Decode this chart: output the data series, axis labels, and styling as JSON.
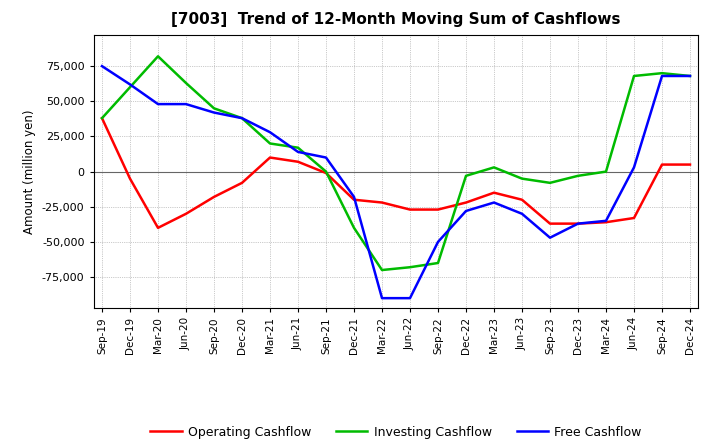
{
  "title": "[7003]  Trend of 12-Month Moving Sum of Cashflows",
  "ylabel": "Amount (million yen)",
  "ylim": [
    -97000,
    97000
  ],
  "yticks": [
    -75000,
    -50000,
    -25000,
    0,
    25000,
    50000,
    75000
  ],
  "background_color": "#ffffff",
  "plot_bg": "#ffffff",
  "grid_color": "#999999",
  "labels": [
    "Sep-19",
    "Dec-19",
    "Mar-20",
    "Jun-20",
    "Sep-20",
    "Dec-20",
    "Mar-21",
    "Jun-21",
    "Sep-21",
    "Dec-21",
    "Mar-22",
    "Jun-22",
    "Sep-22",
    "Dec-22",
    "Mar-23",
    "Jun-23",
    "Sep-23",
    "Dec-23",
    "Mar-24",
    "Jun-24",
    "Sep-24",
    "Dec-24"
  ],
  "operating": [
    38000,
    -5000,
    -40000,
    -30000,
    -18000,
    -8000,
    10000,
    7000,
    -1000,
    -20000,
    -22000,
    -27000,
    -27000,
    -22000,
    -15000,
    -20000,
    -37000,
    -37000,
    -36000,
    -33000,
    5000,
    5000
  ],
  "investing": [
    38000,
    60000,
    82000,
    63000,
    45000,
    38000,
    20000,
    17000,
    0,
    -40000,
    -70000,
    -68000,
    -65000,
    -3000,
    3000,
    -5000,
    -8000,
    -3000,
    0,
    68000,
    70000,
    68000
  ],
  "free": [
    75000,
    62000,
    48000,
    48000,
    42000,
    38000,
    28000,
    14000,
    10000,
    -18000,
    -90000,
    -90000,
    -50000,
    -28000,
    -22000,
    -30000,
    -47000,
    -37000,
    -35000,
    3000,
    68000,
    68000
  ],
  "op_color": "#ff0000",
  "inv_color": "#00bb00",
  "free_color": "#0000ff",
  "legend_labels": [
    "Operating Cashflow",
    "Investing Cashflow",
    "Free Cashflow"
  ],
  "linewidth": 1.8
}
